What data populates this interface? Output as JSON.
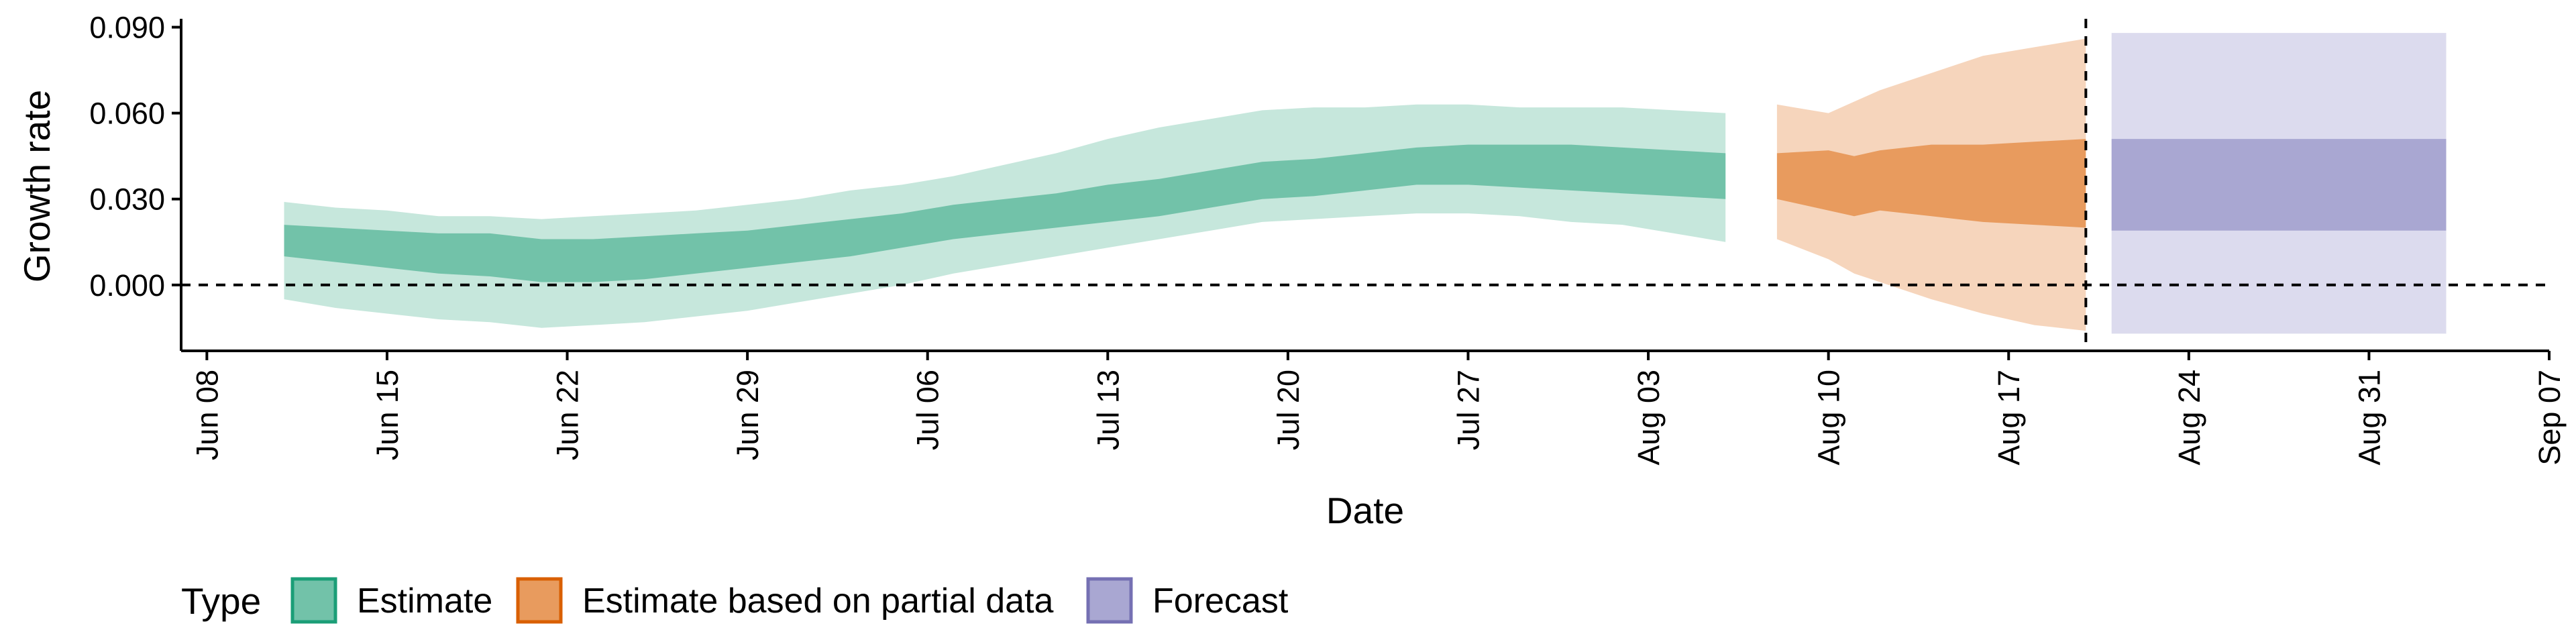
{
  "chart_data": {
    "type": "area",
    "xlabel": "Date",
    "ylabel": "Growth rate",
    "x_axis": {
      "type": "date",
      "range": [
        "2020-06-07",
        "2020-09-07"
      ],
      "ticks": [
        "2020-06-08",
        "2020-06-15",
        "2020-06-22",
        "2020-06-29",
        "2020-07-06",
        "2020-07-13",
        "2020-07-20",
        "2020-07-27",
        "2020-08-03",
        "2020-08-10",
        "2020-08-17",
        "2020-08-24",
        "2020-08-31",
        "2020-09-07"
      ],
      "tick_labels": [
        "Jun 08",
        "Jun 15",
        "Jun 22",
        "Jun 29",
        "Jul 06",
        "Jul 13",
        "Jul 20",
        "Jul 27",
        "Aug 03",
        "Aug 10",
        "Aug 17",
        "Aug 24",
        "Aug 31",
        "Sep 07"
      ]
    },
    "y_axis": {
      "range": [
        -0.023,
        0.092
      ],
      "ticks": [
        0.0,
        0.03,
        0.06,
        0.09
      ],
      "tick_labels": [
        "0.000",
        "0.030",
        "0.060",
        "0.090"
      ]
    },
    "reference_lines": [
      {
        "axis": "y",
        "value": 0.0,
        "style": "dashed"
      },
      {
        "axis": "x",
        "value": "2020-08-20",
        "style": "dashed"
      }
    ],
    "legend": {
      "title": "Type",
      "placement": "bottom",
      "entries": [
        {
          "label": "Estimate",
          "fill": "#72c2a9",
          "stroke": "#1b9e77"
        },
        {
          "label": "Estimate based on partial data",
          "fill": "#e89b5e",
          "stroke": "#d95f02"
        },
        {
          "label": "Forecast",
          "fill": "#a9a7d2",
          "stroke": "#7570b3"
        }
      ]
    },
    "series": [
      {
        "name": "Estimate",
        "band_colors": {
          "outer": "#c6e7dc",
          "inner": "#72c2a9"
        },
        "x": [
          "2020-06-11",
          "2020-06-13",
          "2020-06-15",
          "2020-06-17",
          "2020-06-19",
          "2020-06-21",
          "2020-06-23",
          "2020-06-25",
          "2020-06-27",
          "2020-06-29",
          "2020-07-01",
          "2020-07-03",
          "2020-07-05",
          "2020-07-07",
          "2020-07-09",
          "2020-07-11",
          "2020-07-13",
          "2020-07-15",
          "2020-07-17",
          "2020-07-19",
          "2020-07-21",
          "2020-07-23",
          "2020-07-25",
          "2020-07-27",
          "2020-07-29",
          "2020-07-31",
          "2020-08-02",
          "2020-08-04",
          "2020-08-06"
        ],
        "outer_upper": [
          0.029,
          0.027,
          0.026,
          0.024,
          0.024,
          0.023,
          0.024,
          0.025,
          0.026,
          0.028,
          0.03,
          0.033,
          0.035,
          0.038,
          0.042,
          0.046,
          0.051,
          0.055,
          0.058,
          0.061,
          0.062,
          0.062,
          0.063,
          0.063,
          0.062,
          0.062,
          0.062,
          0.061,
          0.06
        ],
        "inner_upper": [
          0.021,
          0.02,
          0.019,
          0.018,
          0.018,
          0.016,
          0.016,
          0.017,
          0.018,
          0.019,
          0.021,
          0.023,
          0.025,
          0.028,
          0.03,
          0.032,
          0.035,
          0.037,
          0.04,
          0.043,
          0.044,
          0.046,
          0.048,
          0.049,
          0.049,
          0.049,
          0.048,
          0.047,
          0.046
        ],
        "inner_lower": [
          0.01,
          0.008,
          0.006,
          0.004,
          0.003,
          0.001,
          0.001,
          0.002,
          0.004,
          0.006,
          0.008,
          0.01,
          0.013,
          0.016,
          0.018,
          0.02,
          0.022,
          0.024,
          0.027,
          0.03,
          0.031,
          0.033,
          0.035,
          0.035,
          0.034,
          0.033,
          0.032,
          0.031,
          0.03
        ],
        "outer_lower": [
          -0.005,
          -0.008,
          -0.01,
          -0.012,
          -0.013,
          -0.015,
          -0.014,
          -0.013,
          -0.011,
          -0.009,
          -0.006,
          -0.003,
          0.0,
          0.004,
          0.007,
          0.01,
          0.013,
          0.016,
          0.019,
          0.022,
          0.023,
          0.024,
          0.025,
          0.025,
          0.024,
          0.022,
          0.021,
          0.018,
          0.015
        ]
      },
      {
        "name": "Estimate based on partial data",
        "band_colors": {
          "outer": "#f6d5bc",
          "inner": "#e89b5e"
        },
        "x": [
          "2020-08-08",
          "2020-08-10",
          "2020-08-11",
          "2020-08-12",
          "2020-08-14",
          "2020-08-16",
          "2020-08-18",
          "2020-08-20"
        ],
        "outer_upper": [
          0.063,
          0.06,
          0.064,
          0.068,
          0.074,
          0.08,
          0.083,
          0.086
        ],
        "inner_upper": [
          0.046,
          0.047,
          0.045,
          0.047,
          0.049,
          0.049,
          0.05,
          0.051
        ],
        "inner_lower": [
          0.03,
          0.026,
          0.024,
          0.026,
          0.024,
          0.022,
          0.021,
          0.02
        ],
        "outer_lower": [
          0.016,
          0.009,
          0.004,
          0.001,
          -0.005,
          -0.01,
          -0.014,
          -0.016
        ]
      },
      {
        "name": "Forecast",
        "band_colors": {
          "outer": "#dcdbee",
          "inner": "#a9a7d2"
        },
        "x": [
          "2020-08-21",
          "2020-09-03"
        ],
        "outer_upper": [
          0.088,
          0.088
        ],
        "inner_upper": [
          0.051,
          0.051
        ],
        "inner_lower": [
          0.019,
          0.019
        ],
        "outer_lower": [
          -0.017,
          -0.017
        ]
      }
    ]
  }
}
